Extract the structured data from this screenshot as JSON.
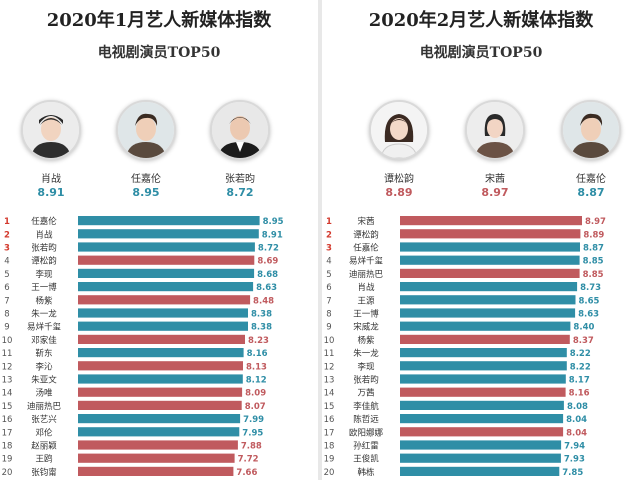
{
  "colors": {
    "teal": "#2f8ea6",
    "red": "#c05a5e",
    "rank": "#d33a2e",
    "rank_normal": "#555555"
  },
  "panels": [
    {
      "title": "2020年1月艺人新媒体指数",
      "subtitle": "电视剧演员TOP50",
      "top3": [
        {
          "name": "肖战",
          "value": "8.91",
          "color": "teal",
          "icon": "young-man-avatar-icon"
        },
        {
          "name": "任嘉伦",
          "value": "8.95",
          "color": "teal",
          "icon": "young-man-avatar-icon"
        },
        {
          "name": "张若昀",
          "value": "8.72",
          "color": "teal",
          "icon": "man-in-suit-avatar-icon"
        }
      ]
    },
    {
      "title": "2020年2月艺人新媒体指数",
      "subtitle": "电视剧演员TOP50",
      "top3": [
        {
          "name": "谭松韵",
          "value": "8.89",
          "color": "red",
          "icon": "young-woman-avatar-icon"
        },
        {
          "name": "宋茜",
          "value": "8.97",
          "color": "red",
          "icon": "woman-avatar-icon"
        },
        {
          "name": "任嘉伦",
          "value": "8.87",
          "color": "teal",
          "icon": "young-man-avatar-icon"
        }
      ]
    }
  ],
  "chart_data": [
    {
      "type": "bar",
      "categories": [
        "任嘉伦",
        "肖战",
        "张若昀",
        "谭松韵",
        "李现",
        "王一博",
        "杨紫",
        "朱一龙",
        "易烊千玺",
        "邓家佳",
        "靳东",
        "李沁",
        "朱亚文",
        "汤唯",
        "迪丽热巴",
        "张艺兴",
        "邓伦",
        "赵丽颖",
        "王鸥",
        "张钧甯"
      ],
      "ranks": [
        1,
        2,
        3,
        4,
        5,
        6,
        7,
        8,
        9,
        10,
        11,
        12,
        13,
        14,
        15,
        16,
        17,
        18,
        19,
        20
      ],
      "values": [
        8.95,
        8.91,
        8.72,
        8.69,
        8.68,
        8.63,
        8.48,
        8.38,
        8.38,
        8.23,
        8.16,
        8.13,
        8.12,
        8.09,
        8.07,
        7.99,
        7.95,
        7.88,
        7.72,
        7.66
      ],
      "value_labels": [
        "8.95",
        "8.91",
        "8.72",
        "8.69",
        "8.68",
        "8.63",
        "8.48",
        "8.38",
        "8.38",
        "8.23",
        "8.16",
        "8.13",
        "8.12",
        "8.09",
        "8.07",
        "7.99",
        "7.95",
        "7.88",
        "7.72",
        "7.66"
      ],
      "bar_colors": [
        "teal",
        "teal",
        "teal",
        "red",
        "teal",
        "teal",
        "red",
        "teal",
        "teal",
        "red",
        "teal",
        "red",
        "teal",
        "red",
        "red",
        "teal",
        "teal",
        "red",
        "red",
        "red"
      ],
      "xlim": [
        0,
        8.97
      ]
    },
    {
      "type": "bar",
      "categories": [
        "宋茜",
        "谭松韵",
        "任嘉伦",
        "易烊千玺",
        "迪丽热巴",
        "肖战",
        "王源",
        "王一博",
        "宋威龙",
        "杨紫",
        "朱一龙",
        "李现",
        "张若昀",
        "万茜",
        "李佳航",
        "陈哲远",
        "欧阳娜娜",
        "孙红雷",
        "王俊凯",
        "韩栋"
      ],
      "ranks": [
        1,
        2,
        3,
        4,
        5,
        6,
        7,
        8,
        9,
        10,
        11,
        12,
        13,
        14,
        15,
        16,
        17,
        18,
        19,
        20
      ],
      "values": [
        8.97,
        8.89,
        8.87,
        8.85,
        8.85,
        8.73,
        8.65,
        8.63,
        8.4,
        8.37,
        8.22,
        8.22,
        8.17,
        8.16,
        8.08,
        8.04,
        8.04,
        7.94,
        7.93,
        7.85
      ],
      "value_labels": [
        "8.97",
        "8.89",
        "8.87",
        "8.85",
        "8.85",
        "8.73",
        "8.65",
        "8.63",
        "8.40",
        "8.37",
        "8.22",
        "8.22",
        "8.17",
        "8.16",
        "8.08",
        "8.04",
        "8.04",
        "7.94",
        "7.93",
        "7.85"
      ],
      "bar_colors": [
        "red",
        "red",
        "teal",
        "teal",
        "red",
        "teal",
        "teal",
        "teal",
        "teal",
        "red",
        "teal",
        "teal",
        "teal",
        "red",
        "teal",
        "teal",
        "red",
        "teal",
        "teal",
        "teal"
      ],
      "xlim": [
        0,
        8.97
      ]
    }
  ]
}
